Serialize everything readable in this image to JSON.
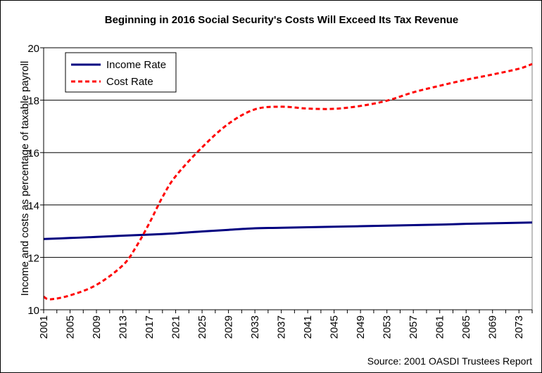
{
  "chart_data": {
    "type": "line",
    "title": "Beginning in 2016 Social Security's Costs Will Exceed Its Tax Revenue",
    "ylabel": "Income and costs as percentage of taxable payroll",
    "xlabel": "",
    "source": "Source: 2001 OASDI Trustees Report",
    "ylim": [
      10,
      20
    ],
    "yticks": [
      "10",
      "12",
      "14",
      "16",
      "18",
      "20"
    ],
    "xlim": [
      2001,
      2075
    ],
    "xticks": [
      "2001",
      "2005",
      "2009",
      "2013",
      "2017",
      "2021",
      "2025",
      "2029",
      "2033",
      "2037",
      "2041",
      "2045",
      "2049",
      "2053",
      "2057",
      "2061",
      "2065",
      "2069",
      "2073"
    ],
    "grid": "horizontal",
    "legend_position": "top-left",
    "series": [
      {
        "name": "Income Rate",
        "color": "#000080",
        "style": "solid",
        "x": [
          2001,
          2005,
          2009,
          2013,
          2017,
          2021,
          2025,
          2029,
          2033,
          2037,
          2041,
          2045,
          2049,
          2053,
          2057,
          2061,
          2065,
          2069,
          2073,
          2075
        ],
        "y": [
          12.7,
          12.74,
          12.78,
          12.83,
          12.87,
          12.92,
          12.99,
          13.05,
          13.11,
          13.13,
          13.15,
          13.17,
          13.19,
          13.21,
          13.23,
          13.25,
          13.28,
          13.3,
          13.32,
          13.33
        ]
      },
      {
        "name": "Cost Rate",
        "color": "#ff0000",
        "style": "dashed",
        "x": [
          2001,
          2002,
          2005,
          2009,
          2013,
          2015,
          2017,
          2019,
          2021,
          2025,
          2029,
          2033,
          2037,
          2041,
          2045,
          2049,
          2053,
          2057,
          2061,
          2065,
          2069,
          2073,
          2075
        ],
        "y": [
          10.5,
          10.4,
          10.55,
          10.95,
          11.7,
          12.4,
          13.3,
          14.3,
          15.1,
          16.2,
          17.1,
          17.65,
          17.75,
          17.68,
          17.67,
          17.78,
          17.98,
          18.3,
          18.55,
          18.78,
          18.98,
          19.2,
          19.38
        ]
      }
    ]
  }
}
